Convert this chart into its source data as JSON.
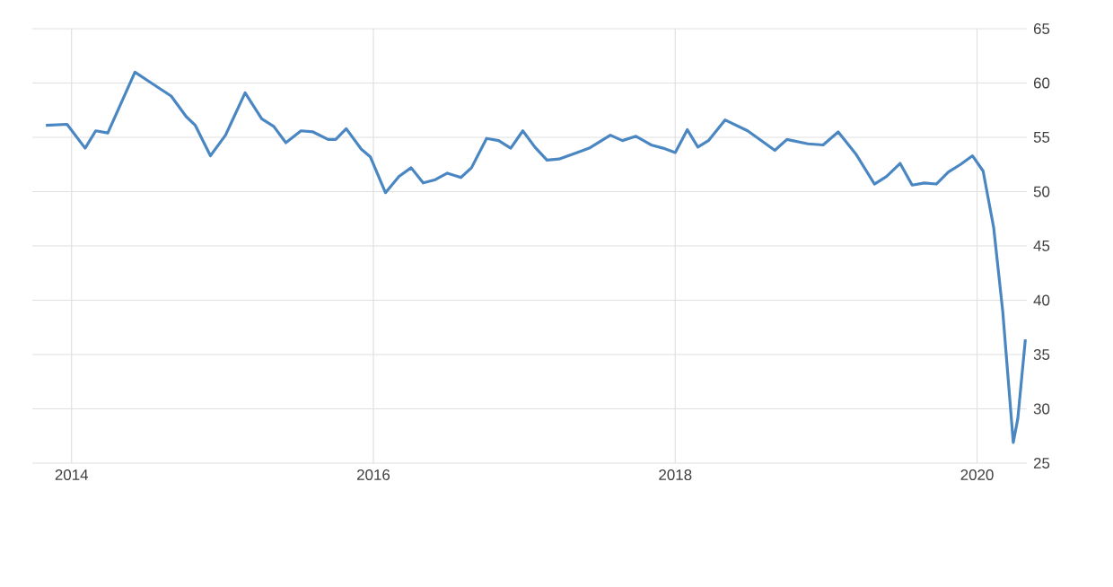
{
  "chart_data": {
    "type": "line",
    "x": [
      2013.83,
      2013.97,
      2014.09,
      2014.16,
      2014.24,
      2014.42,
      2014.54,
      2014.66,
      2014.76,
      2014.82,
      2014.92,
      2015.02,
      2015.15,
      2015.26,
      2015.34,
      2015.42,
      2015.52,
      2015.6,
      2015.7,
      2015.75,
      2015.82,
      2015.92,
      2015.98,
      2016.08,
      2016.17,
      2016.25,
      2016.33,
      2016.41,
      2016.49,
      2016.58,
      2016.65,
      2016.75,
      2016.83,
      2016.91,
      2016.99,
      2017.07,
      2017.15,
      2017.23,
      2017.35,
      2017.43,
      2017.57,
      2017.65,
      2017.74,
      2017.84,
      2017.92,
      2018.0,
      2018.08,
      2018.15,
      2018.22,
      2018.33,
      2018.48,
      2018.66,
      2018.74,
      2018.88,
      2018.98,
      2019.08,
      2019.2,
      2019.32,
      2019.4,
      2019.49,
      2019.57,
      2019.65,
      2019.73,
      2019.81,
      2019.89,
      2019.97,
      2020.04,
      2020.11,
      2020.17,
      2020.24,
      2020.27,
      2020.32
    ],
    "series": [
      {
        "color": "#4a87c2",
        "values": [
          56.1,
          56.2,
          54.0,
          55.6,
          55.4,
          61.0,
          59.9,
          58.8,
          56.9,
          56.1,
          53.3,
          55.2,
          59.1,
          56.7,
          56.0,
          54.5,
          55.6,
          55.5,
          54.8,
          54.8,
          55.8,
          53.9,
          53.2,
          49.9,
          51.4,
          52.2,
          50.8,
          51.1,
          51.7,
          51.3,
          52.2,
          54.9,
          54.7,
          54.0,
          55.6,
          54.1,
          52.9,
          53.0,
          53.6,
          54.0,
          55.2,
          54.7,
          55.1,
          54.3,
          54.0,
          53.6,
          55.7,
          54.1,
          54.7,
          56.6,
          55.6,
          53.8,
          54.8,
          54.4,
          54.3,
          55.5,
          53.4,
          50.7,
          51.4,
          52.6,
          50.6,
          50.8,
          50.7,
          51.8,
          52.5,
          53.3,
          51.9,
          46.7,
          39.0,
          26.9,
          29.1,
          36.4
        ]
      }
    ],
    "xlim": [
      2013.74,
      2020.33
    ],
    "ylim": [
      25,
      65
    ],
    "xticks": [
      2014,
      2016,
      2018,
      2020
    ],
    "yticks": [
      25,
      30,
      35,
      40,
      45,
      50,
      55,
      60,
      65
    ],
    "grid": true,
    "marker": "none",
    "line_style": "solid"
  }
}
